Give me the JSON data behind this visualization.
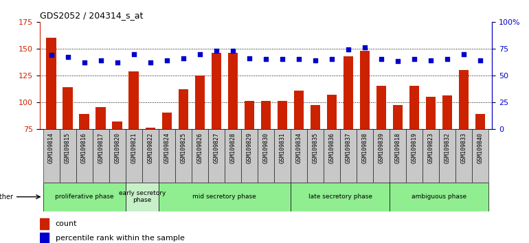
{
  "title": "GDS2052 / 204314_s_at",
  "samples": [
    "GSM109814",
    "GSM109815",
    "GSM109816",
    "GSM109817",
    "GSM109820",
    "GSM109821",
    "GSM109822",
    "GSM109824",
    "GSM109825",
    "GSM109826",
    "GSM109827",
    "GSM109828",
    "GSM109829",
    "GSM109830",
    "GSM109831",
    "GSM109834",
    "GSM109835",
    "GSM109836",
    "GSM109837",
    "GSM109838",
    "GSM109839",
    "GSM109818",
    "GSM109819",
    "GSM109823",
    "GSM109832",
    "GSM109833",
    "GSM109840"
  ],
  "counts": [
    160,
    114,
    89,
    95,
    82,
    129,
    76,
    90,
    112,
    125,
    146,
    146,
    101,
    101,
    101,
    111,
    97,
    107,
    143,
    148,
    115,
    97,
    115,
    105,
    106,
    130,
    89
  ],
  "percentiles": [
    69,
    67,
    62,
    64,
    62,
    70,
    62,
    64,
    66,
    70,
    73,
    73,
    66,
    65,
    65,
    65,
    64,
    65,
    74,
    76,
    65,
    63,
    65,
    64,
    65,
    70,
    64
  ],
  "ylim_left": [
    75,
    175
  ],
  "ylim_right": [
    0,
    100
  ],
  "yticks_left": [
    75,
    100,
    125,
    150,
    175
  ],
  "yticks_right": [
    0,
    25,
    50,
    75,
    100
  ],
  "bar_color": "#cc2200",
  "dot_color": "#0000cc",
  "bg_color": "#ffffff",
  "tick_bg_color": "#c8c8c8",
  "phase_groups": [
    {
      "label": "proliferative phase",
      "start": 0,
      "end": 5,
      "color": "#90ee90"
    },
    {
      "label": "early secretory\nphase",
      "start": 5,
      "end": 7,
      "color": "#c8f0c8"
    },
    {
      "label": "mid secretory phase",
      "start": 7,
      "end": 15,
      "color": "#90ee90"
    },
    {
      "label": "late secretory phase",
      "start": 15,
      "end": 21,
      "color": "#90ee90"
    },
    {
      "label": "ambiguous phase",
      "start": 21,
      "end": 27,
      "color": "#90ee90"
    }
  ],
  "other_label": "other",
  "legend_count": "count",
  "legend_pct": "percentile rank within the sample"
}
